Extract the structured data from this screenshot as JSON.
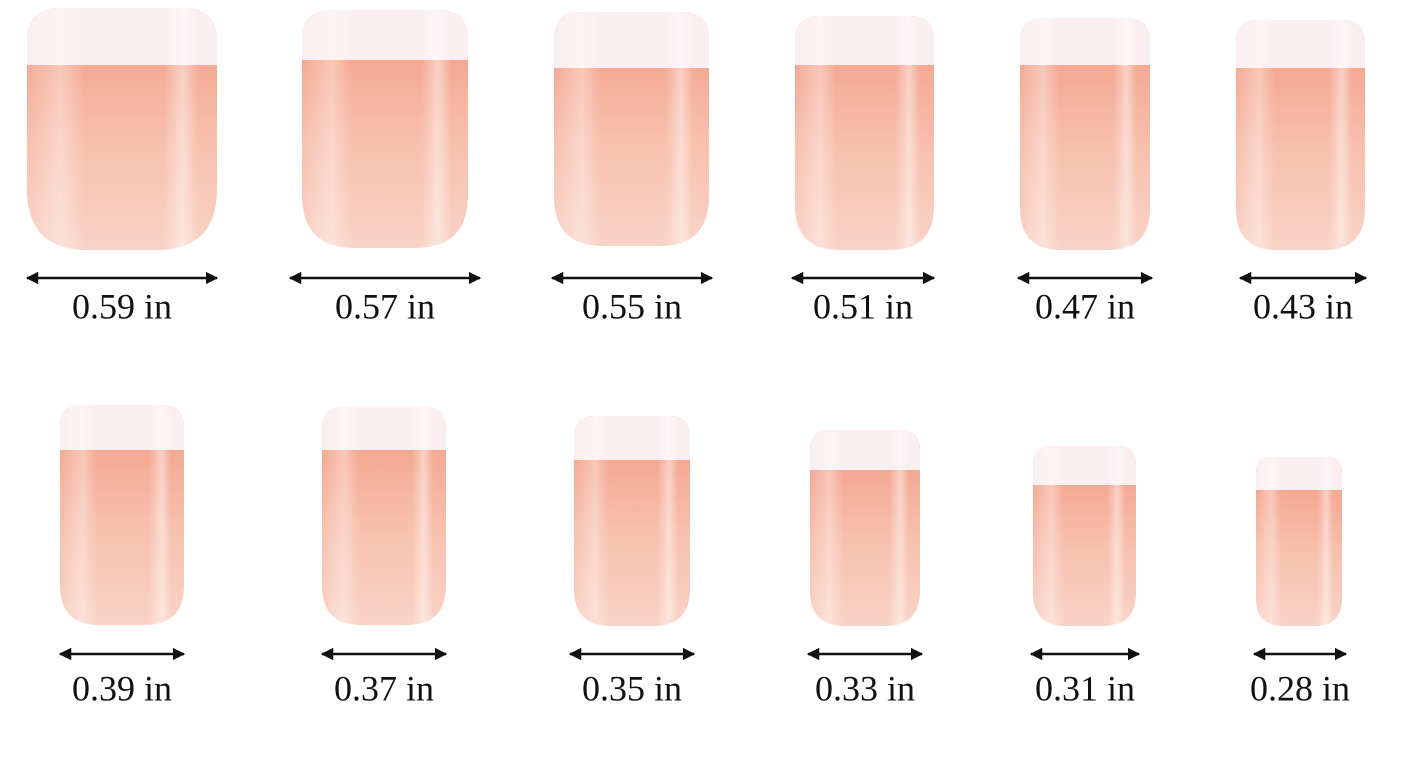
{
  "sizes": [
    [
      "0.59 in",
      "0.57 in",
      "0.55 in",
      "0.51 in",
      "0.47 in",
      "0.43 in"
    ],
    [
      "0.39 in",
      "0.37 in",
      "0.35 in",
      "0.33 in",
      "0.31 in",
      "0.28 in"
    ]
  ]
}
